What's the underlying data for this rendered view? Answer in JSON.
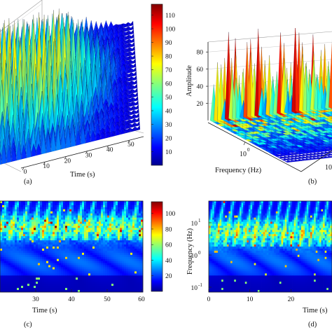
{
  "chart_data": [
    {
      "type": "surface",
      "panel_label": "(a)",
      "xlabel": "Time (s)",
      "x_ticks": [
        0,
        10,
        20,
        30,
        40,
        50
      ],
      "colorbar_ticks": [
        10,
        20,
        30,
        40,
        50,
        60,
        70,
        80,
        90,
        100,
        110
      ],
      "colorbar_range": [
        0,
        118
      ]
    },
    {
      "type": "surface",
      "panel_label": "(b)",
      "xlabel": "Frequency (Hz)",
      "zlabel": "Amplitude",
      "z_ticks": [
        20,
        40,
        60,
        80
      ],
      "freq_ticks": [
        "10",
        "0"
      ],
      "log_frequency": true
    },
    {
      "type": "heatmap",
      "panel_label": "(c)",
      "xlabel": "Time (s)",
      "x_ticks": [
        30,
        40,
        50,
        60
      ],
      "colorbar_ticks": [
        20,
        40,
        60,
        80,
        100
      ],
      "colorbar_range": [
        0,
        115
      ]
    },
    {
      "type": "heatmap",
      "panel_label": "(d)",
      "xlabel": "Time (s)",
      "ylabel": "Frequency (Hz)",
      "x_ticks": [
        0,
        10,
        20
      ],
      "y_ticks": [
        {
          "base": "10",
          "exp": "1"
        },
        {
          "base": "10",
          "exp": "0"
        },
        {
          "base": "10",
          "exp": "-1"
        }
      ],
      "log_frequency": true
    }
  ],
  "colormap": [
    "#00008f",
    "#0000ff",
    "#0080ff",
    "#00ffff",
    "#80ff80",
    "#ffff00",
    "#ff8000",
    "#ff0000",
    "#800000"
  ]
}
